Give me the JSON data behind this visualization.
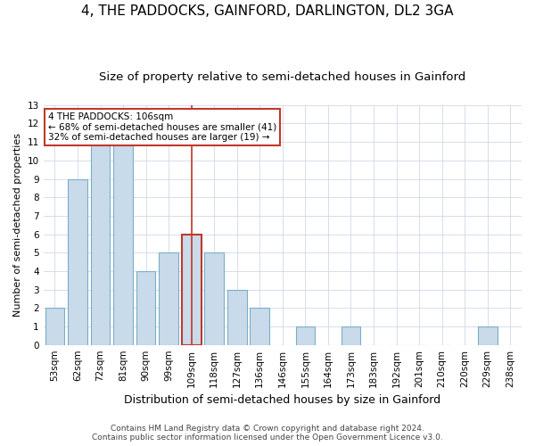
{
  "title": "4, THE PADDOCKS, GAINFORD, DARLINGTON, DL2 3GA",
  "subtitle": "Size of property relative to semi-detached houses in Gainford",
  "xlabel": "Distribution of semi-detached houses by size in Gainford",
  "ylabel": "Number of semi-detached properties",
  "categories": [
    "53sqm",
    "62sqm",
    "72sqm",
    "81sqm",
    "90sqm",
    "99sqm",
    "109sqm",
    "118sqm",
    "127sqm",
    "136sqm",
    "146sqm",
    "155sqm",
    "164sqm",
    "173sqm",
    "183sqm",
    "192sqm",
    "201sqm",
    "210sqm",
    "220sqm",
    "229sqm",
    "238sqm"
  ],
  "values": [
    2,
    9,
    11,
    11,
    4,
    5,
    6,
    5,
    3,
    2,
    0,
    1,
    0,
    1,
    0,
    0,
    0,
    0,
    0,
    1,
    0
  ],
  "bar_color": "#c9daea",
  "bar_edge_color": "#7aafc8",
  "highlight_index": 6,
  "highlight_edge_color": "#c0392b",
  "annotation_title": "4 THE PADDOCKS: 106sqm",
  "annotation_line1": "← 68% of semi-detached houses are smaller (41)",
  "annotation_line2": "32% of semi-detached houses are larger (19) →",
  "annotation_box_color": "white",
  "annotation_box_edge": "#c0392b",
  "ylim": [
    0,
    13
  ],
  "yticks": [
    0,
    1,
    2,
    3,
    4,
    5,
    6,
    7,
    8,
    9,
    10,
    11,
    12,
    13
  ],
  "footer1": "Contains HM Land Registry data © Crown copyright and database right 2024.",
  "footer2": "Contains public sector information licensed under the Open Government Licence v3.0.",
  "title_fontsize": 11,
  "subtitle_fontsize": 9.5,
  "xlabel_fontsize": 9,
  "ylabel_fontsize": 8,
  "tick_fontsize": 7.5,
  "annotation_fontsize": 7.5,
  "footer_fontsize": 6.5,
  "grid_color": "#d0d8e8",
  "background_color": "#ffffff"
}
